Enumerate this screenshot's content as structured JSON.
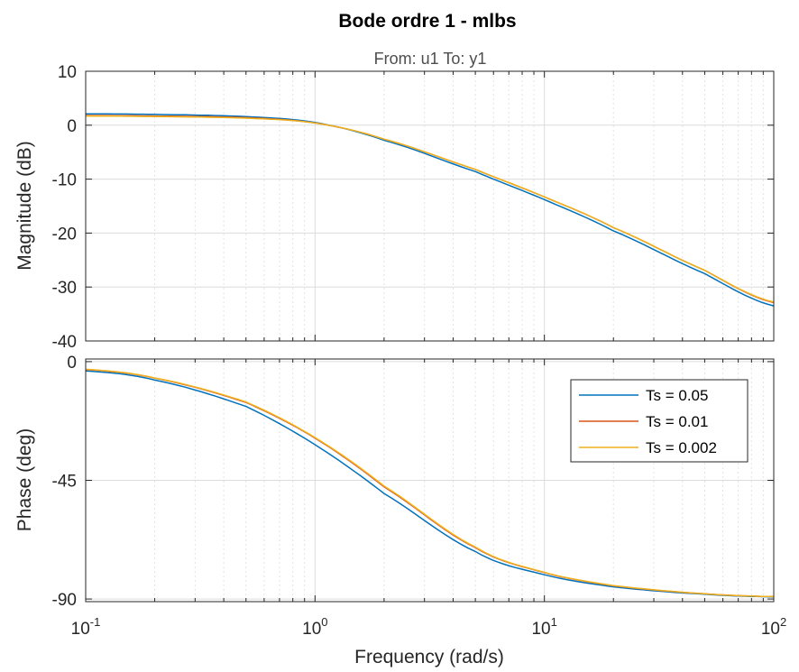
{
  "figure": {
    "title": "Bode ordre 1 - mlbs",
    "subtitle": "From: u1  To: y1",
    "xlabel": "Frequency  (rad/s)"
  },
  "chart_data": [
    {
      "type": "line",
      "name": "magnitude",
      "ylabel": "Magnitude (dB)",
      "xscale": "log",
      "xlim": [
        0.1,
        100
      ],
      "ylim": [
        -40,
        10
      ],
      "xticks": [
        0.1,
        1,
        10,
        100
      ],
      "yticks": [
        10,
        0,
        -10,
        -20,
        -30,
        -40
      ],
      "ytick_labels": [
        "10",
        "0",
        "-10",
        "-20",
        "-30",
        "-40"
      ],
      "grid": true,
      "series": [
        {
          "name": "Ts = 0.05",
          "color": "#0072BD",
          "x": [
            0.1,
            0.2,
            0.5,
            1,
            2,
            5,
            10,
            20,
            50,
            100
          ],
          "y": [
            2.1,
            2.0,
            1.6,
            0.5,
            -2.8,
            -8.6,
            -13.8,
            -19.6,
            -27.5,
            -33.5
          ]
        },
        {
          "name": "Ts = 0.01",
          "color": "#D95319",
          "x": [
            0.1,
            0.2,
            0.5,
            1,
            2,
            5,
            10,
            20,
            50,
            100
          ],
          "y": [
            1.8,
            1.7,
            1.4,
            0.4,
            -2.6,
            -8.2,
            -13.3,
            -19.0,
            -26.9,
            -32.9
          ]
        },
        {
          "name": "Ts = 0.002",
          "color": "#EDB120",
          "x": [
            0.1,
            0.2,
            0.5,
            1,
            2,
            5,
            10,
            20,
            50,
            100
          ],
          "y": [
            1.7,
            1.6,
            1.3,
            0.4,
            -2.6,
            -8.2,
            -13.3,
            -19.0,
            -26.9,
            -32.8
          ]
        }
      ]
    },
    {
      "type": "line",
      "name": "phase",
      "ylabel": "Phase (deg)",
      "xscale": "log",
      "xlim": [
        0.1,
        100
      ],
      "ylim": [
        -91,
        1
      ],
      "xticks": [
        0.1,
        1,
        10,
        100
      ],
      "yticks": [
        0,
        -45,
        -90
      ],
      "ytick_labels": [
        "0",
        "-45",
        "-90"
      ],
      "grid": true,
      "legend": "top-right",
      "series": [
        {
          "name": "Ts = 0.05",
          "color": "#0072BD",
          "x": [
            0.1,
            0.2,
            0.5,
            1,
            2,
            5,
            10,
            20,
            50,
            100
          ],
          "y": [
            -3.5,
            -7.0,
            -17.0,
            -31.5,
            -50.0,
            -72.0,
            -80.8,
            -85.4,
            -88.2,
            -89.2
          ]
        },
        {
          "name": "Ts = 0.01",
          "color": "#D95319",
          "x": [
            0.1,
            0.2,
            0.5,
            1,
            2,
            5,
            10,
            20,
            50,
            100
          ],
          "y": [
            -3.0,
            -6.3,
            -15.5,
            -29.0,
            -47.5,
            -70.5,
            -80.0,
            -85.0,
            -88.0,
            -89.1
          ]
        },
        {
          "name": "Ts = 0.002",
          "color": "#EDB120",
          "x": [
            0.1,
            0.2,
            0.5,
            1,
            2,
            5,
            10,
            20,
            50,
            100
          ],
          "y": [
            -2.9,
            -6.2,
            -15.3,
            -28.8,
            -47.2,
            -70.3,
            -79.9,
            -84.9,
            -88.0,
            -89.1
          ]
        }
      ]
    }
  ]
}
